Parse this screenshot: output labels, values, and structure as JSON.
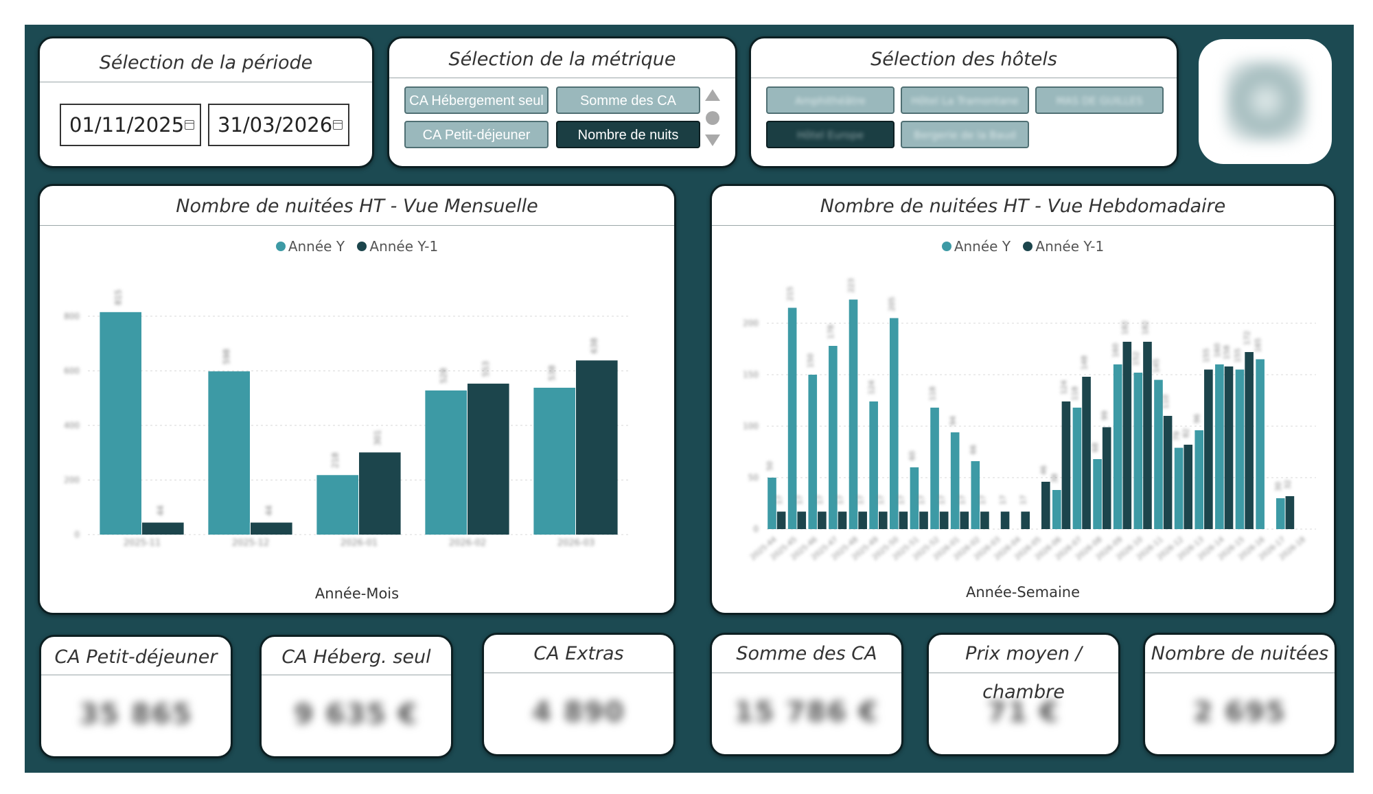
{
  "period": {
    "title": "Sélection de la période",
    "start_date": "01/11/2025",
    "end_date": "31/03/2026"
  },
  "metric": {
    "title": "Sélection de la métrique",
    "options": [
      {
        "label": "CA Hébergement seul",
        "selected": false
      },
      {
        "label": "Somme des CA",
        "selected": false
      },
      {
        "label": "CA Petit-déjeuner",
        "selected": false
      },
      {
        "label": "Nombre de nuits",
        "selected": true
      }
    ]
  },
  "hotels": {
    "title": "Sélection des hôtels",
    "options": [
      {
        "label": "Amphithéâtre",
        "selected": false
      },
      {
        "label": "Hôtel La Tramontane",
        "selected": false
      },
      {
        "label": "MAS DE GUILLES",
        "selected": false
      },
      {
        "label": "Hôtel Europe",
        "selected": true
      },
      {
        "label": "Bergerie de la Baud",
        "selected": false
      }
    ]
  },
  "colors": {
    "year_y": "#3d9aa5",
    "year_y1": "#1c454c",
    "frame": "#1c4a52"
  },
  "monthly_chart": {
    "title": "Nombre de nuitées HT - Vue Mensuelle",
    "legend": [
      "Année Y",
      "Année Y-1"
    ],
    "xlabel": "Année-Mois",
    "chart_data": {
      "type": "bar",
      "categories": [
        "2025-11",
        "2025-12",
        "2026-01",
        "2026-02",
        "2026-03"
      ],
      "series": [
        {
          "name": "Année Y",
          "values": [
            815,
            598,
            218,
            528,
            538
          ]
        },
        {
          "name": "Année Y-1",
          "values": [
            44,
            44,
            301,
            553,
            638
          ]
        }
      ],
      "ylim": [
        0,
        900
      ],
      "yticks": [
        0,
        200,
        400,
        600,
        800
      ]
    }
  },
  "weekly_chart": {
    "title": "Nombre de nuitées HT - Vue Hebdomadaire",
    "legend": [
      "Année Y",
      "Année Y-1"
    ],
    "xlabel": "Année-Semaine",
    "chart_data": {
      "type": "bar",
      "categories": [
        "2025-44",
        "2025-45",
        "2025-46",
        "2025-47",
        "2025-48",
        "2025-49",
        "2025-50",
        "2025-51",
        "2025-52",
        "2026-01",
        "2026-02",
        "2026-03",
        "2026-04",
        "2026-05",
        "2026-06",
        "2026-07",
        "2026-08",
        "2026-09",
        "2026-10",
        "2026-11",
        "2026-12",
        "2026-13",
        "2026-14",
        "2026-15",
        "2026-16",
        "2026-17",
        "2026-18"
      ],
      "series": [
        {
          "name": "Année Y",
          "values": [
            50,
            215,
            150,
            178,
            223,
            124,
            205,
            60,
            118,
            94,
            66,
            0,
            0,
            0,
            38,
            118,
            68,
            160,
            152,
            145,
            79,
            96,
            160,
            155,
            165,
            30,
            0
          ]
        },
        {
          "name": "Année Y-1",
          "values": [
            17,
            17,
            17,
            17,
            17,
            17,
            17,
            17,
            17,
            17,
            17,
            17,
            17,
            46,
            124,
            148,
            99,
            182,
            182,
            110,
            82,
            155,
            158,
            172,
            0,
            32,
            0
          ]
        }
      ],
      "ylim": [
        0,
        240
      ],
      "yticks": [
        0,
        50,
        100,
        150,
        200
      ]
    }
  },
  "kpis": [
    {
      "title": "CA Petit-déjeuner",
      "value": "35 865"
    },
    {
      "title": "CA Héberg. seul",
      "value": "9 635 €"
    },
    {
      "title": "CA Extras",
      "value": "4 890"
    },
    {
      "title": "Somme des CA",
      "value": "15 786 €"
    },
    {
      "title": "Prix moyen / chambre",
      "value": "71 €"
    },
    {
      "title": "Nombre de nuitées",
      "value": "2 695"
    }
  ]
}
